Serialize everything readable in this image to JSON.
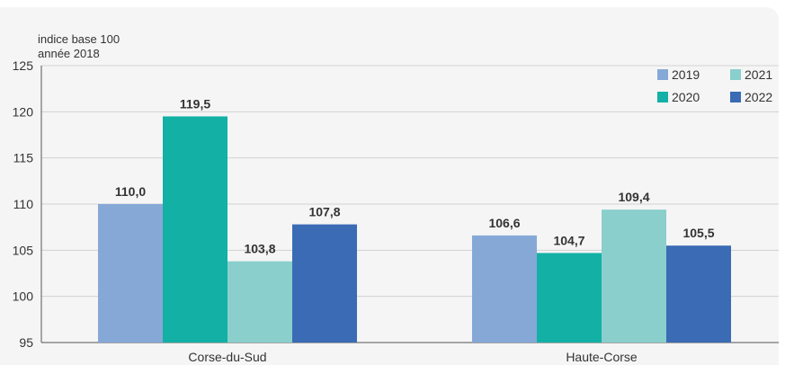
{
  "chart_data": {
    "type": "bar",
    "ylabel_lines": [
      "indice base 100",
      "année 2018"
    ],
    "categories": [
      "Corse-du-Sud",
      "Haute-Corse"
    ],
    "series": [
      {
        "name": "2019",
        "color": "#86a8d6",
        "values": [
          110.0,
          106.6
        ],
        "labels": [
          "110,0",
          "106,6"
        ]
      },
      {
        "name": "2020",
        "color": "#13b0a6",
        "values": [
          119.5,
          104.7
        ],
        "labels": [
          "119,5",
          "104,7"
        ]
      },
      {
        "name": "2021",
        "color": "#8acfcc",
        "values": [
          103.8,
          109.4
        ],
        "labels": [
          "103,8",
          "109,4"
        ]
      },
      {
        "name": "2022",
        "color": "#3a6bb4",
        "values": [
          107.8,
          105.5
        ],
        "labels": [
          "107,8",
          "105,5"
        ]
      }
    ],
    "ylim": [
      95,
      125
    ],
    "yticks": [
      95,
      100,
      105,
      110,
      115,
      120,
      125
    ],
    "grid": true,
    "legend": "top-right"
  }
}
